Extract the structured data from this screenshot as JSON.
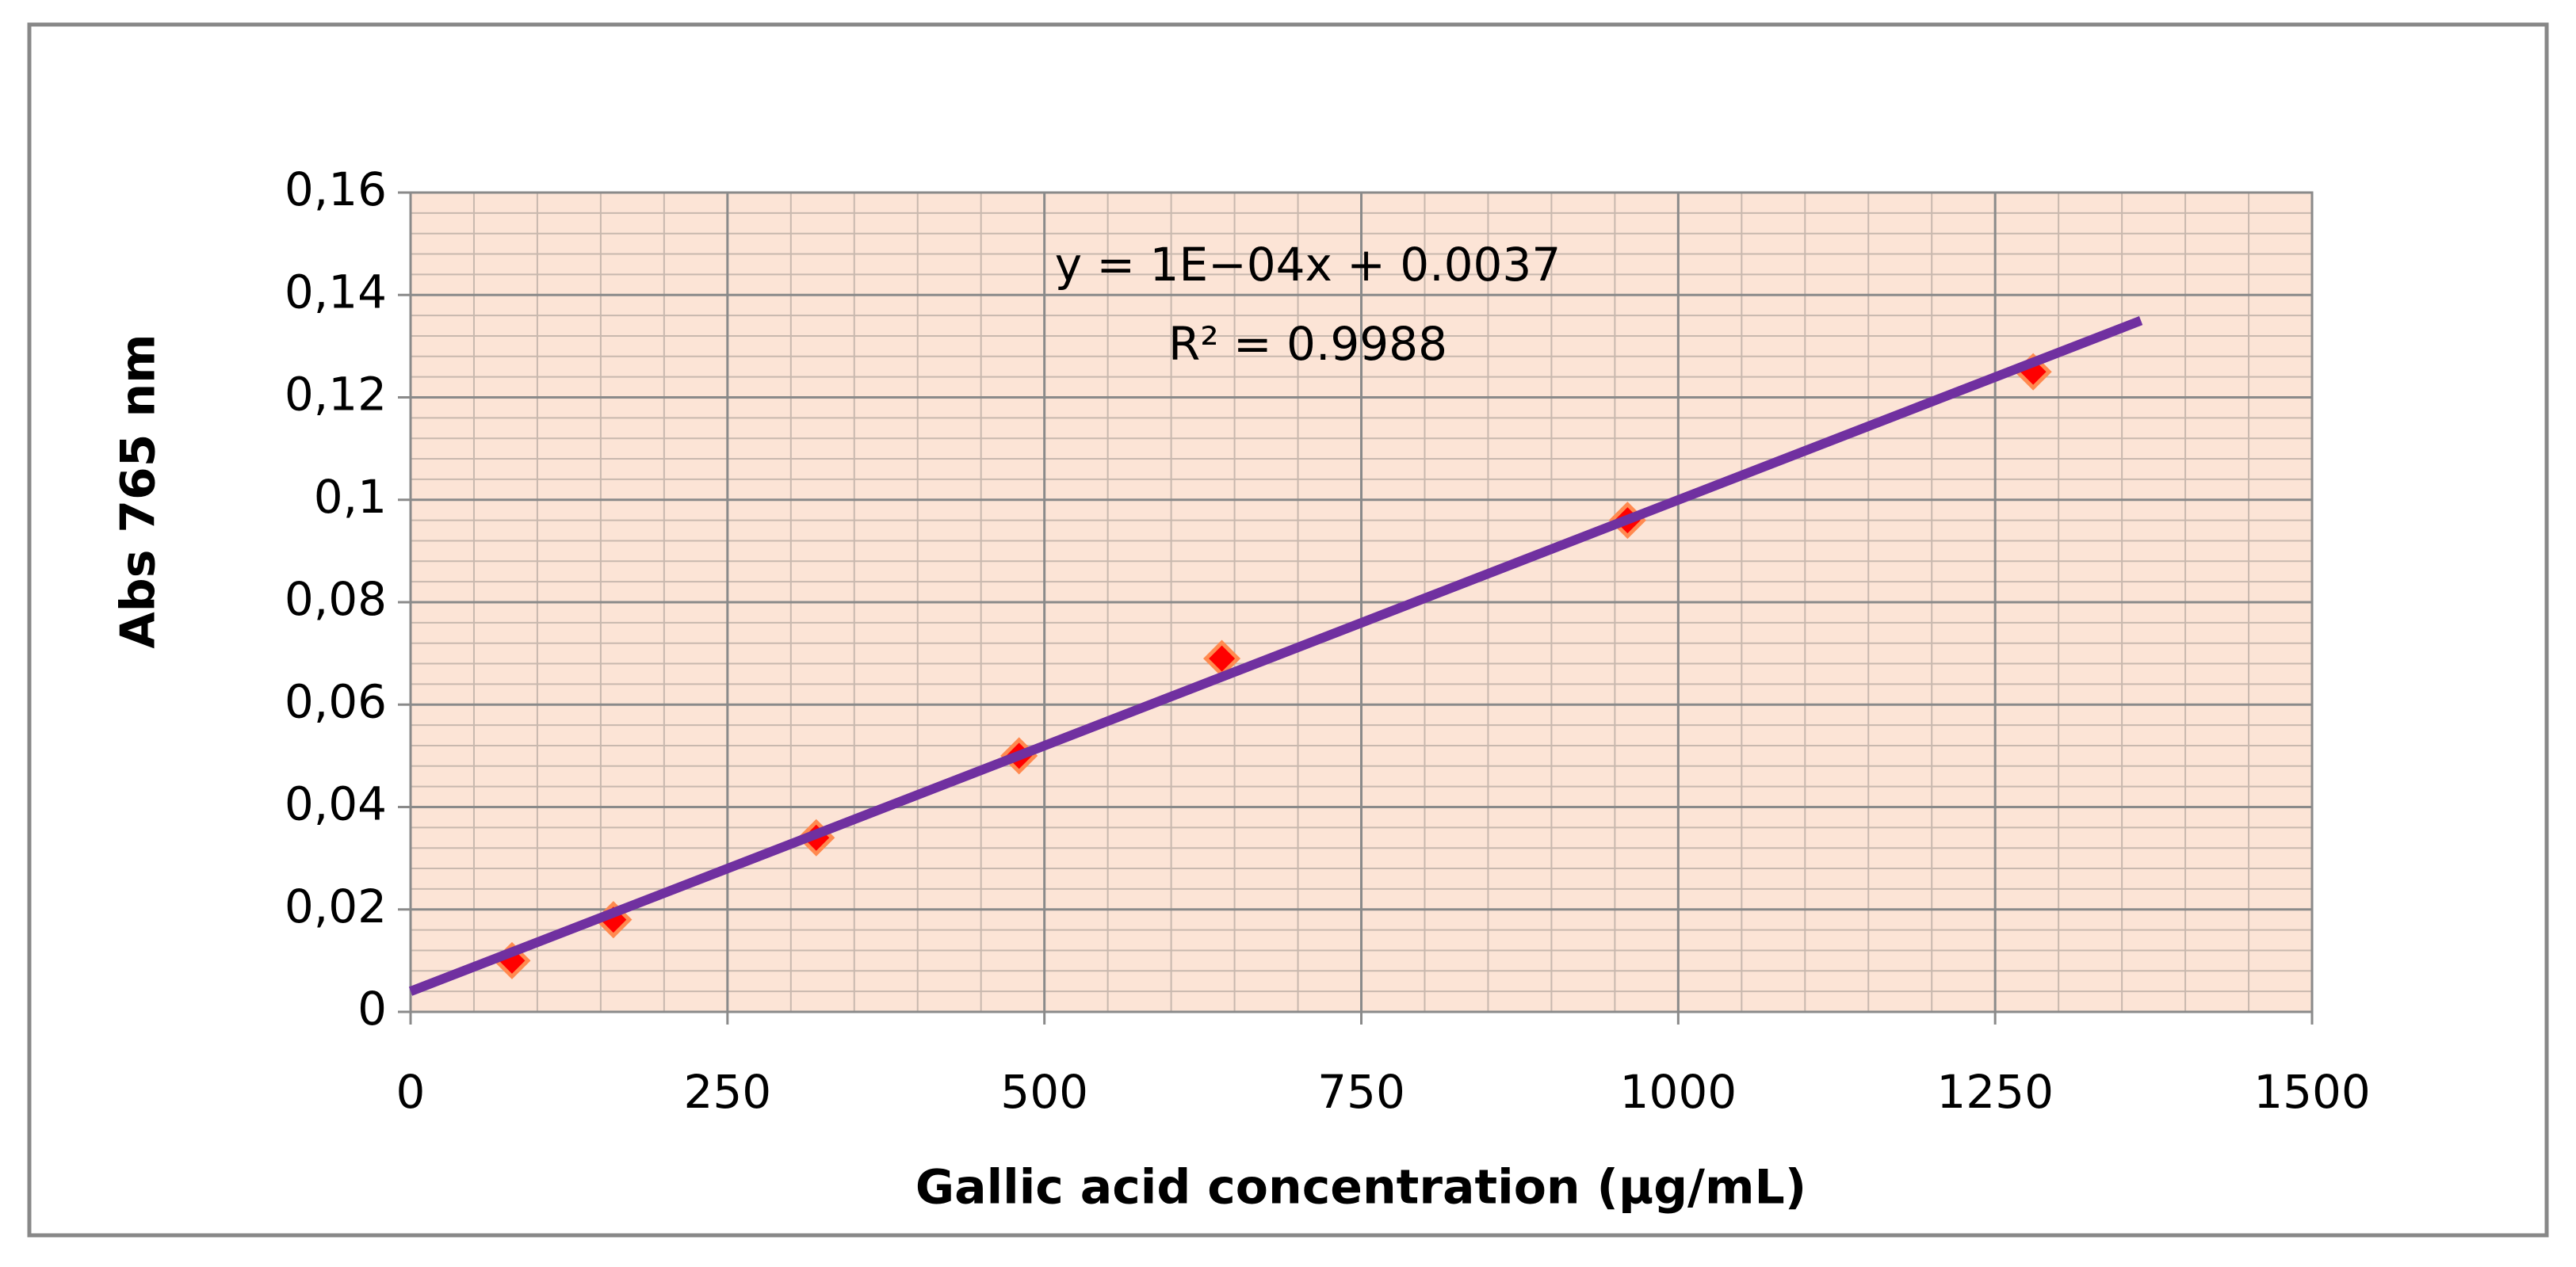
{
  "chart_data": {
    "type": "scatter",
    "x_label": "Gallic acid concentration  (µg/mL)",
    "y_label": "Abs  765 nm",
    "annotations": [
      "y = 1E−04x + 0.0037",
      "R² = 0.9988"
    ],
    "series": [
      {
        "color": "#ff0000",
        "x": [
          80,
          160,
          320,
          480,
          640,
          960,
          1280
        ],
        "values": [
          0.01,
          0.018,
          0.034,
          0.05,
          0.069,
          0.096,
          0.125
        ]
      }
    ],
    "trendline": {
      "color": "#7030a0",
      "x": [
        0,
        1365
      ],
      "values": [
        0.004,
        0.135
      ]
    },
    "xlim": [
      0,
      1500
    ],
    "xticks": [
      0,
      250,
      500,
      750,
      1000,
      1250,
      1500
    ],
    "ylim": [
      0,
      0.16
    ],
    "yticks": [
      0,
      {
        "value": 0.02,
        "label": "0,02"
      },
      {
        "value": 0.04,
        "label": "0,04"
      },
      {
        "value": 0.06,
        "label": "0,06"
      },
      {
        "value": 0.08,
        "label": "0,08"
      },
      {
        "value": 0.1,
        "label": "0,1"
      },
      {
        "value": 0.12,
        "label": "0,12"
      },
      {
        "value": 0.14,
        "label": "0,14"
      },
      {
        "value": 0.16,
        "label": "0,16"
      }
    ],
    "grid": true,
    "plot_background": "#fce4d6"
  }
}
